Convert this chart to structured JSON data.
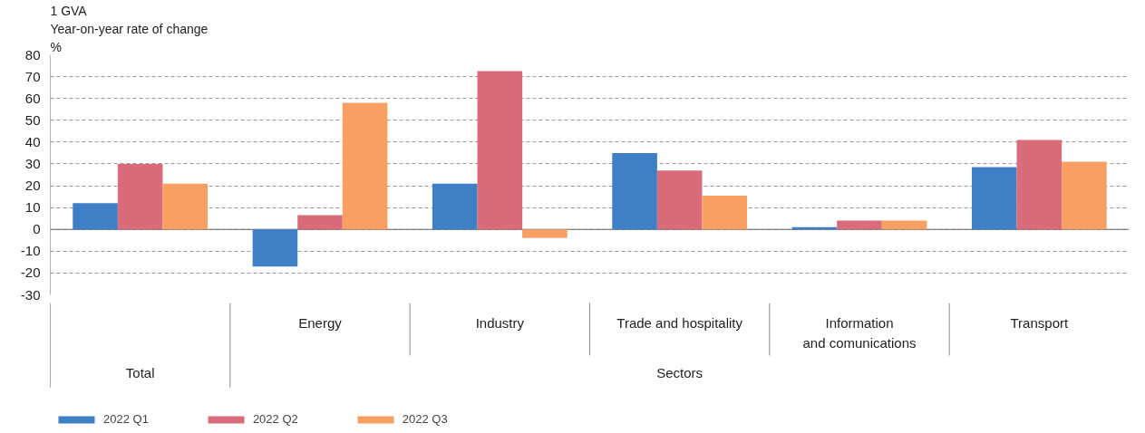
{
  "chart_data": {
    "type": "bar",
    "title": "1  GVA",
    "subtitle": "Year-on-year rate of change",
    "ylabel": "%",
    "categories": [
      null,
      "Energy",
      "Industry",
      "Trade and hospitality",
      "Information\nand comunications",
      "Transport"
    ],
    "series": [
      {
        "name": "2022 Q1",
        "color": "#3f7fc6",
        "values": [
          12,
          -17,
          21,
          35,
          1,
          28.5
        ]
      },
      {
        "name": "2022 Q2",
        "color": "#d96b7b",
        "values": [
          30,
          6.5,
          72.5,
          27,
          4,
          41
        ]
      },
      {
        "name": "2022 Q3",
        "color": "#f89f64",
        "values": [
          21,
          58,
          -4,
          15.5,
          4,
          31
        ]
      }
    ],
    "annotations": [
      "Total",
      "Sectors"
    ],
    "ylim": [
      -30,
      80
    ],
    "yticks": [
      -30,
      -20,
      -10,
      0,
      10,
      20,
      30,
      40,
      50,
      60,
      70,
      80
    ],
    "grid": "y",
    "legend": "bottom left"
  }
}
